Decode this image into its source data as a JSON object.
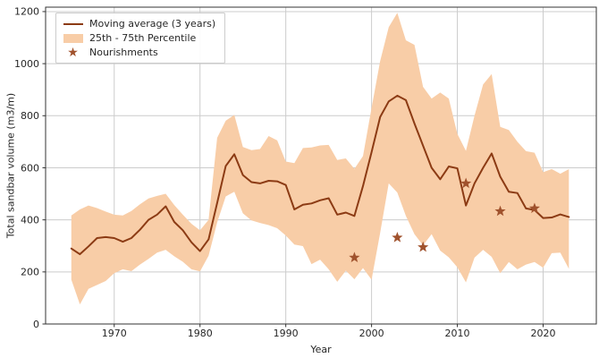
{
  "figure": {
    "xlabel": "Year",
    "ylabel": "Total sandbar volume (m3/m)"
  },
  "legend": {
    "moving_average": "Moving average (3 years)",
    "percentile": "25th - 75th Percentile",
    "nourishments": "Nourishments"
  },
  "colors": {
    "line": "#8c3b14",
    "band": "#f8cda7",
    "star": "#a0522d",
    "grid": "#cccccc",
    "spine": "#333333",
    "text": "#262626"
  },
  "chart_data": {
    "type": "line",
    "title": "",
    "xlabel": "Year",
    "ylabel": "Total sandbar volume (m3/m)",
    "xlim": [
      1962,
      2026
    ],
    "ylim": [
      0,
      1200
    ],
    "xticks": [
      1970,
      1980,
      1990,
      2000,
      2010,
      2020
    ],
    "yticks": [
      0,
      200,
      400,
      600,
      800,
      1000,
      1200
    ],
    "grid": true,
    "legend_position": "upper left",
    "years": [
      1965,
      1966,
      1967,
      1968,
      1969,
      1970,
      1971,
      1972,
      1973,
      1974,
      1975,
      1976,
      1977,
      1978,
      1979,
      1980,
      1981,
      1982,
      1983,
      1984,
      1985,
      1986,
      1987,
      1988,
      1989,
      1990,
      1991,
      1992,
      1993,
      1994,
      1995,
      1996,
      1997,
      1998,
      1999,
      2000,
      2001,
      2002,
      2003,
      2004,
      2005,
      2006,
      2007,
      2008,
      2009,
      2010,
      2011,
      2012,
      2013,
      2014,
      2015,
      2016,
      2017,
      2018,
      2019,
      2020,
      2021,
      2022,
      2023
    ],
    "series": [
      {
        "name": "Moving average (3 years)",
        "role": "line",
        "values": [
          290,
          268,
          298,
          330,
          334,
          330,
          316,
          330,
          362,
          400,
          420,
          452,
          392,
          360,
          314,
          280,
          325,
          465,
          607,
          652,
          572,
          545,
          540,
          550,
          548,
          534,
          440,
          458,
          463,
          475,
          483,
          420,
          428,
          415,
          530,
          660,
          795,
          855,
          877,
          860,
          770,
          685,
          600,
          556,
          605,
          598,
          455,
          540,
          600,
          655,
          566,
          508,
          503,
          444,
          438,
          407,
          409,
          421,
          411
        ]
      },
      {
        "name": "75th Percentile",
        "role": "band-upper",
        "values": [
          417,
          440,
          455,
          445,
          432,
          420,
          417,
          434,
          460,
          482,
          492,
          500,
          457,
          420,
          385,
          360,
          400,
          715,
          781,
          803,
          680,
          668,
          672,
          722,
          705,
          624,
          618,
          676,
          678,
          686,
          688,
          630,
          636,
          596,
          645,
          830,
          1010,
          1140,
          1195,
          1090,
          1072,
          911,
          866,
          889,
          866,
          730,
          665,
          800,
          920,
          960,
          757,
          745,
          700,
          664,
          658,
          583,
          595,
          577,
          595
        ]
      },
      {
        "name": "25th Percentile",
        "role": "band-lower",
        "values": [
          170,
          75,
          135,
          150,
          165,
          195,
          210,
          203,
          228,
          250,
          274,
          285,
          260,
          239,
          210,
          202,
          262,
          390,
          490,
          508,
          425,
          398,
          388,
          380,
          368,
          340,
          305,
          299,
          230,
          247,
          210,
          162,
          205,
          172,
          215,
          170,
          350,
          540,
          505,
          415,
          345,
          302,
          345,
          282,
          256,
          218,
          160,
          255,
          285,
          258,
          195,
          238,
          210,
          228,
          238,
          216,
          272,
          274,
          212
        ]
      }
    ],
    "nourishments": {
      "name": "Nourishments",
      "role": "scatter",
      "marker": "star",
      "points": [
        {
          "year": 1998,
          "value": 255
        },
        {
          "year": 2003,
          "value": 332
        },
        {
          "year": 2006,
          "value": 295
        },
        {
          "year": 2011,
          "value": 540
        },
        {
          "year": 2015,
          "value": 433
        },
        {
          "year": 2019,
          "value": 444
        }
      ]
    }
  }
}
